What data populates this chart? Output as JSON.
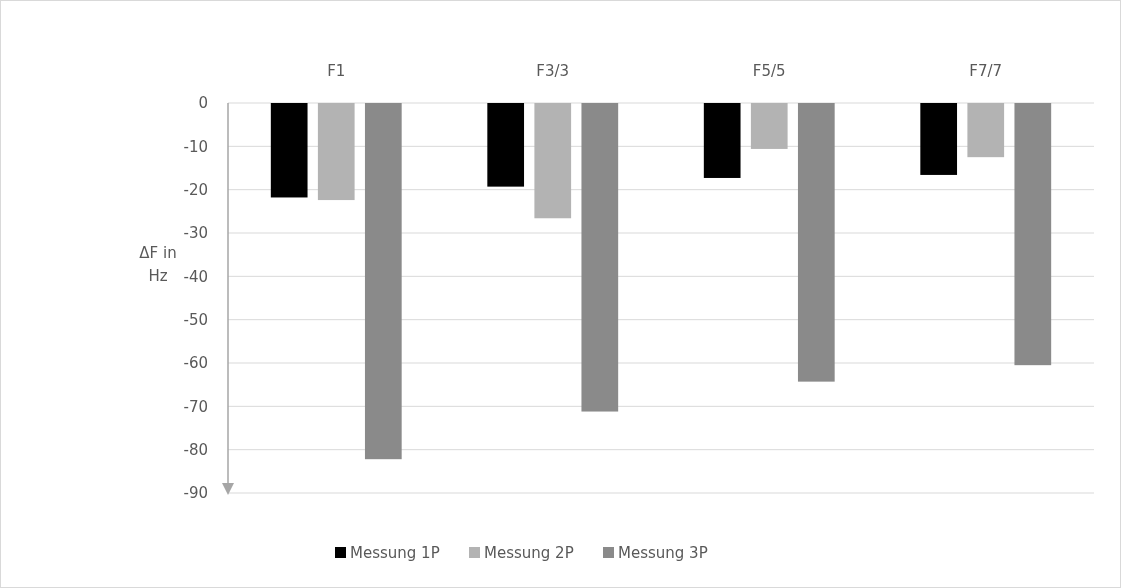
{
  "chart_data": {
    "type": "bar",
    "ylabel": "ΔF in Hz",
    "categories": [
      "F1",
      "F3/3",
      "F5/5",
      "F7/7"
    ],
    "series": [
      {
        "name": "Messung 1P",
        "color": "#000000",
        "values": [
          -21.8,
          -19.3,
          -17.3,
          -16.6
        ]
      },
      {
        "name": "Messung 2P",
        "color": "#b3b3b3",
        "values": [
          -22.4,
          -26.6,
          -10.6,
          -12.5
        ]
      },
      {
        "name": "Messung 3P",
        "color": "#8a8a8a",
        "values": [
          -82.2,
          -71.2,
          -64.3,
          -60.5
        ]
      }
    ],
    "ylim": [
      -90,
      0
    ],
    "yticks": [
      0,
      -10,
      -20,
      -30,
      -40,
      -50,
      -60,
      -70,
      -80,
      -90
    ],
    "grid": "y",
    "legend": "bottom"
  }
}
